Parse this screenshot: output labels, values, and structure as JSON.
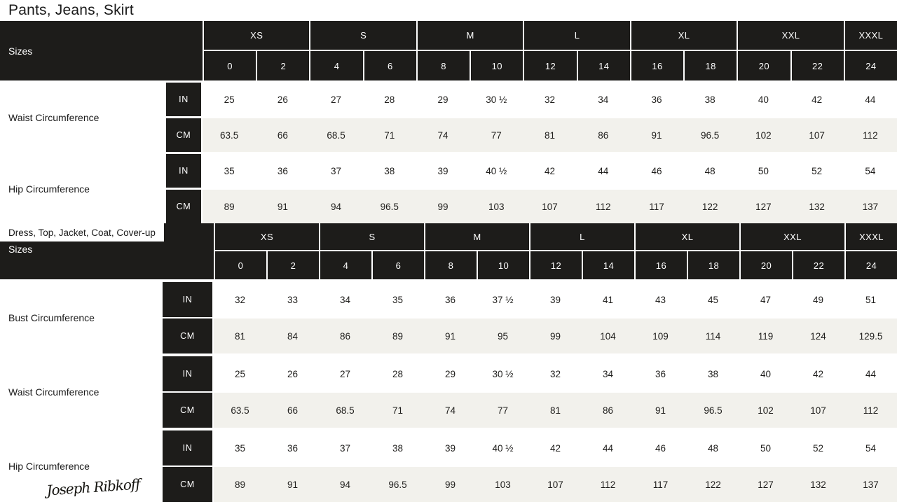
{
  "colors": {
    "dark": "#1d1c1a",
    "row_alt": "#f2f1ec",
    "text": "#1f1e1c",
    "separator": "#ffffff"
  },
  "logo": {
    "text": "Joseph Ribkoff"
  },
  "units": [
    "IN",
    "CM"
  ],
  "size_groups": [
    {
      "label": "XS",
      "span": 2
    },
    {
      "label": "S",
      "span": 2
    },
    {
      "label": "M",
      "span": 2
    },
    {
      "label": "L",
      "span": 2
    },
    {
      "label": "XL",
      "span": 2
    },
    {
      "label": "XXL",
      "span": 2
    },
    {
      "label": "XXXL",
      "span": 1
    }
  ],
  "sizes": [
    "0",
    "2",
    "4",
    "6",
    "8",
    "10",
    "12",
    "14",
    "16",
    "18",
    "20",
    "22",
    "24"
  ],
  "tables": [
    {
      "title": "Pants, Jeans, Skirt",
      "sizes_label": "Sizes",
      "measurements": [
        {
          "label": "Waist Circumference",
          "in": [
            "25",
            "26",
            "27",
            "28",
            "29",
            "30 ½",
            "32",
            "34",
            "36",
            "38",
            "40",
            "42",
            "44"
          ],
          "cm": [
            "63.5",
            "66",
            "68.5",
            "71",
            "74",
            "77",
            "81",
            "86",
            "91",
            "96.5",
            "102",
            "107",
            "112"
          ]
        },
        {
          "label": "Hip Circumference",
          "in": [
            "35",
            "36",
            "37",
            "38",
            "39",
            "40 ½",
            "42",
            "44",
            "46",
            "48",
            "50",
            "52",
            "54"
          ],
          "cm": [
            "89",
            "91",
            "94",
            "96.5",
            "99",
            "103",
            "107",
            "112",
            "117",
            "122",
            "127",
            "132",
            "137"
          ]
        }
      ]
    },
    {
      "title": "Dress, Top, Jacket, Coat, Cover-up",
      "sizes_label": "Sizes",
      "measurements": [
        {
          "label": "Bust Circumference",
          "in": [
            "32",
            "33",
            "34",
            "35",
            "36",
            "37 ½",
            "39",
            "41",
            "43",
            "45",
            "47",
            "49",
            "51"
          ],
          "cm": [
            "81",
            "84",
            "86",
            "89",
            "91",
            "95",
            "99",
            "104",
            "109",
            "114",
            "119",
            "124",
            "129.5"
          ]
        },
        {
          "label": "Waist Circumference",
          "in": [
            "25",
            "26",
            "27",
            "28",
            "29",
            "30 ½",
            "32",
            "34",
            "36",
            "38",
            "40",
            "42",
            "44"
          ],
          "cm": [
            "63.5",
            "66",
            "68.5",
            "71",
            "74",
            "77",
            "81",
            "86",
            "91",
            "96.5",
            "102",
            "107",
            "112"
          ]
        },
        {
          "label": "Hip Circumference",
          "in": [
            "35",
            "36",
            "37",
            "38",
            "39",
            "40 ½",
            "42",
            "44",
            "46",
            "48",
            "50",
            "52",
            "54"
          ],
          "cm": [
            "89",
            "91",
            "94",
            "96.5",
            "99",
            "103",
            "107",
            "112",
            "117",
            "122",
            "127",
            "132",
            "137"
          ]
        }
      ]
    }
  ]
}
